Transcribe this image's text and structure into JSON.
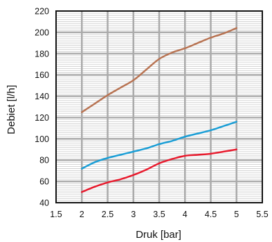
{
  "chart_data": {
    "type": "line",
    "xlabel": "Druk [bar]",
    "ylabel": "Debiet [l/h]",
    "xlim": [
      1.5,
      5.5
    ],
    "ylim": [
      40,
      220
    ],
    "x_ticks": [
      "1.5",
      "2",
      "2.5",
      "3",
      "3.5",
      "4",
      "4.5",
      "5",
      "5.5"
    ],
    "y_ticks": [
      "40",
      "60",
      "80",
      "100",
      "120",
      "140",
      "160",
      "180",
      "200",
      "220"
    ],
    "x_tick_values": [
      1.5,
      2,
      2.5,
      3,
      3.5,
      4,
      4.5,
      5,
      5.5
    ],
    "y_tick_values": [
      40,
      60,
      80,
      100,
      120,
      140,
      160,
      180,
      200,
      220
    ],
    "grid": true,
    "series": [
      {
        "color": "#b87352",
        "x": [
          2,
          2.25,
          2.5,
          2.75,
          3,
          3.25,
          3.5,
          3.75,
          4,
          4.25,
          4.5,
          4.75,
          5
        ],
        "values": [
          125,
          133,
          141,
          148,
          155,
          165,
          175,
          181,
          185,
          190,
          195,
          199,
          204
        ]
      },
      {
        "color": "#1a9ed6",
        "x": [
          2,
          2.25,
          2.5,
          2.75,
          3,
          3.25,
          3.5,
          3.75,
          4,
          4.25,
          4.5,
          4.75,
          5
        ],
        "values": [
          72,
          78,
          82,
          85,
          88,
          91,
          95,
          98,
          102,
          105,
          108,
          112,
          116
        ]
      },
      {
        "color": "#e8192c",
        "x": [
          2,
          2.25,
          2.5,
          2.75,
          3,
          3.25,
          3.5,
          3.75,
          4,
          4.25,
          4.5,
          4.75,
          5
        ],
        "values": [
          50,
          55,
          59,
          62,
          66,
          71,
          77,
          81,
          84,
          85,
          86,
          88,
          90
        ]
      }
    ]
  }
}
